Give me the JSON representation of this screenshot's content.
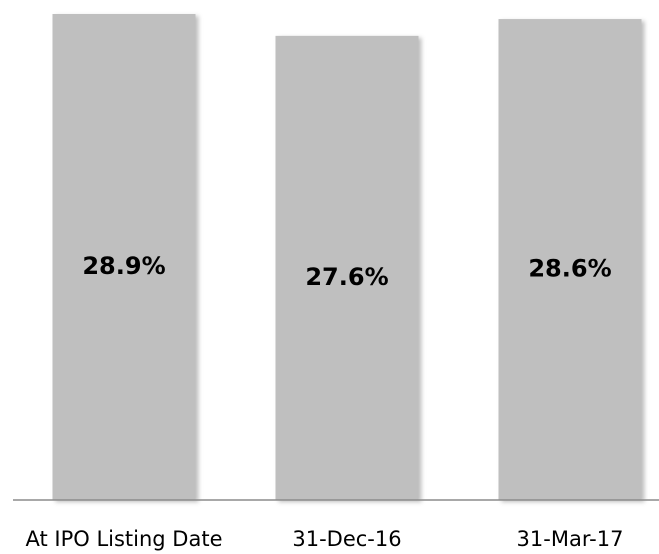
{
  "chart_data": {
    "type": "bar",
    "categories": [
      "At IPO Listing Date",
      "31-Dec-16",
      "31-Mar-17"
    ],
    "values": [
      28.9,
      27.6,
      28.6
    ],
    "value_labels": [
      "28.9%",
      "27.6%",
      "28.6%"
    ],
    "color": "#bfbfbf"
  }
}
